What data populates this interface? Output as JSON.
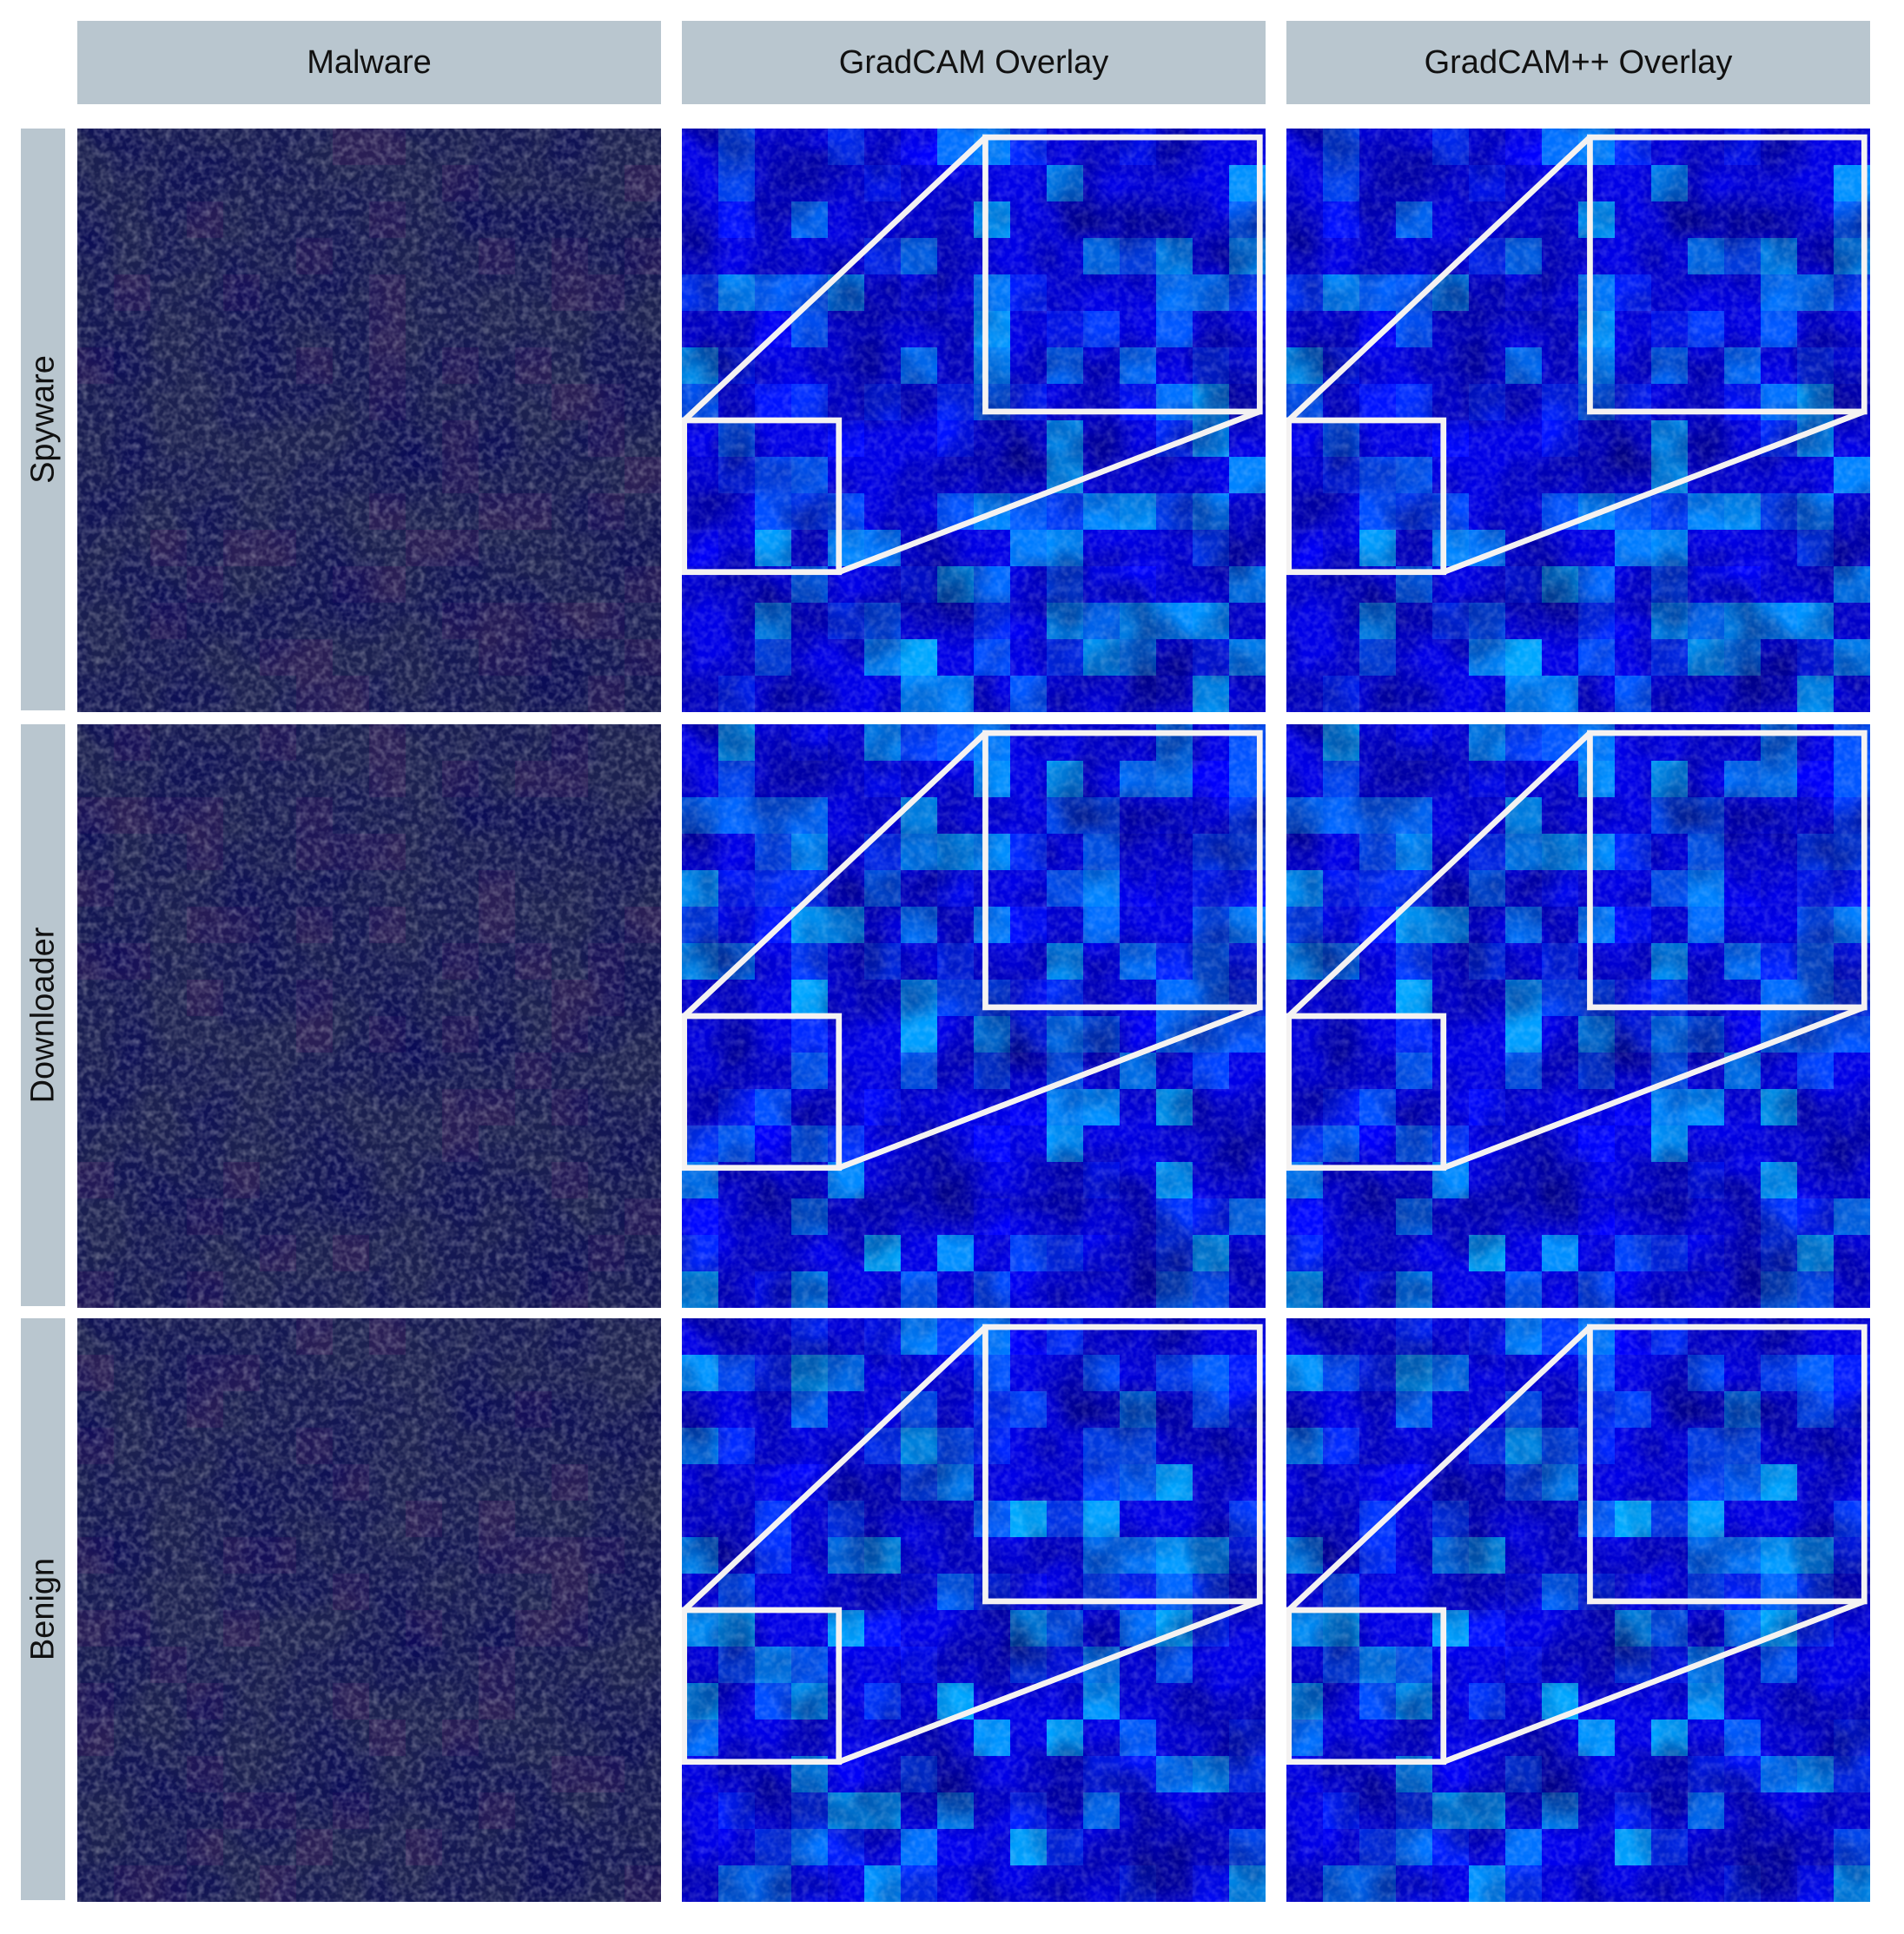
{
  "columns": [
    "Malware",
    "GradCAM Overlay",
    "GradCAM++ Overlay"
  ],
  "rows": [
    "Spyware",
    "Downloader",
    "Benign"
  ]
}
